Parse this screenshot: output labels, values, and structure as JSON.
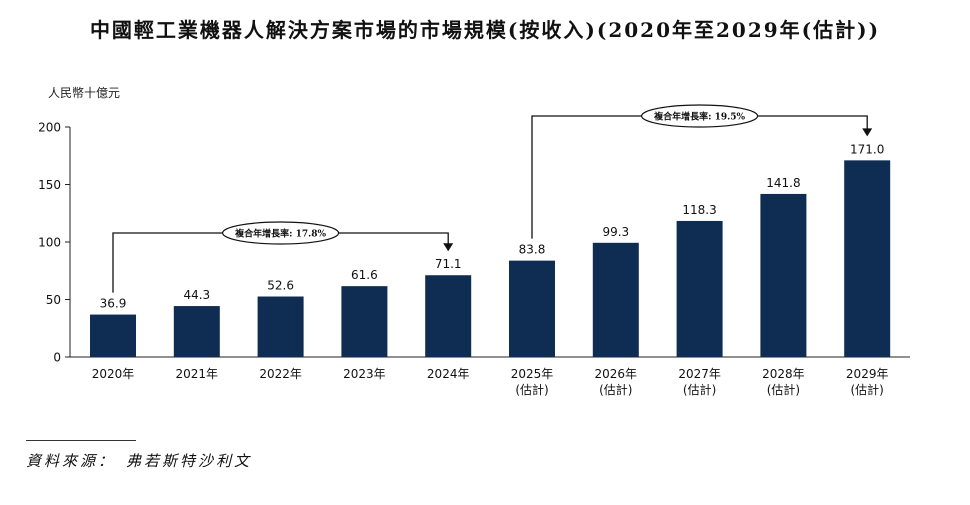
{
  "title": "中國輕工業機器人解決方案市場的市場規模(按收入)(2020年至2029年(估計))",
  "source": {
    "label": "資料來源：",
    "name": "弗若斯特沙利文"
  },
  "colors": {
    "bar": "#0f2d52",
    "axis": "#222222",
    "highlight": "#f4e07a"
  },
  "chart_data": {
    "type": "bar",
    "title": "中國輕工業機器人解決方案市場的市場規模(按收入)(2020年至2029年(估計))",
    "ylabel": "人民幣十億元",
    "xlabel": "",
    "ylim": [
      0,
      200
    ],
    "yticks": [
      0,
      50,
      100,
      150,
      200
    ],
    "grid": false,
    "categories": [
      "2020年",
      "2021年",
      "2022年",
      "2023年",
      "2024年",
      "2025年\n(估計)",
      "2026年\n(估計)",
      "2027年\n(估計)",
      "2028年\n(估計)",
      "2029年\n(估計)"
    ],
    "values": [
      36.9,
      44.3,
      52.6,
      61.6,
      71.1,
      83.8,
      99.3,
      118.3,
      141.8,
      171.0
    ],
    "value_labels": [
      "36.9",
      "44.3",
      "52.6",
      "61.6",
      "71.1",
      "83.8",
      "99.3",
      "118.3",
      "141.8",
      "171.0"
    ],
    "annotations": [
      {
        "text": "複合年增長率: 17.8%",
        "from_index": 0,
        "to_index": 4
      },
      {
        "text": "複合年增長率: 19.5%",
        "from_index": 5,
        "to_index": 9
      }
    ]
  }
}
